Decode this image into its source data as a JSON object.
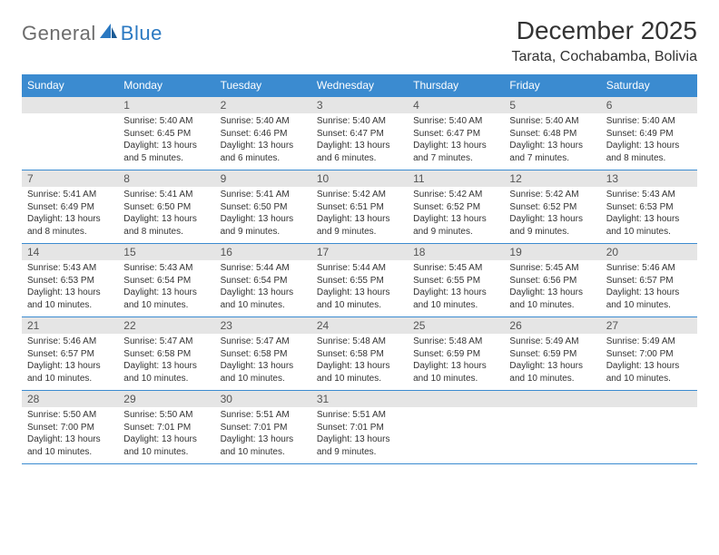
{
  "brand": {
    "part1": "General",
    "part2": "Blue"
  },
  "title": "December 2025",
  "location": "Tarata, Cochabamba, Bolivia",
  "colors": {
    "header_bg": "#3b8bd0",
    "header_text": "#ffffff",
    "daynum_bg": "#e5e5e5",
    "border": "#3b8bd0",
    "body_text": "#333333",
    "logo_gray": "#6c6c6c",
    "logo_blue": "#2b79c2"
  },
  "weekdays": [
    "Sunday",
    "Monday",
    "Tuesday",
    "Wednesday",
    "Thursday",
    "Friday",
    "Saturday"
  ],
  "weeks": [
    [
      {
        "empty": true
      },
      {
        "n": "1",
        "sr": "Sunrise: 5:40 AM",
        "ss": "Sunset: 6:45 PM",
        "d1": "Daylight: 13 hours",
        "d2": "and 5 minutes."
      },
      {
        "n": "2",
        "sr": "Sunrise: 5:40 AM",
        "ss": "Sunset: 6:46 PM",
        "d1": "Daylight: 13 hours",
        "d2": "and 6 minutes."
      },
      {
        "n": "3",
        "sr": "Sunrise: 5:40 AM",
        "ss": "Sunset: 6:47 PM",
        "d1": "Daylight: 13 hours",
        "d2": "and 6 minutes."
      },
      {
        "n": "4",
        "sr": "Sunrise: 5:40 AM",
        "ss": "Sunset: 6:47 PM",
        "d1": "Daylight: 13 hours",
        "d2": "and 7 minutes."
      },
      {
        "n": "5",
        "sr": "Sunrise: 5:40 AM",
        "ss": "Sunset: 6:48 PM",
        "d1": "Daylight: 13 hours",
        "d2": "and 7 minutes."
      },
      {
        "n": "6",
        "sr": "Sunrise: 5:40 AM",
        "ss": "Sunset: 6:49 PM",
        "d1": "Daylight: 13 hours",
        "d2": "and 8 minutes."
      }
    ],
    [
      {
        "n": "7",
        "sr": "Sunrise: 5:41 AM",
        "ss": "Sunset: 6:49 PM",
        "d1": "Daylight: 13 hours",
        "d2": "and 8 minutes."
      },
      {
        "n": "8",
        "sr": "Sunrise: 5:41 AM",
        "ss": "Sunset: 6:50 PM",
        "d1": "Daylight: 13 hours",
        "d2": "and 8 minutes."
      },
      {
        "n": "9",
        "sr": "Sunrise: 5:41 AM",
        "ss": "Sunset: 6:50 PM",
        "d1": "Daylight: 13 hours",
        "d2": "and 9 minutes."
      },
      {
        "n": "10",
        "sr": "Sunrise: 5:42 AM",
        "ss": "Sunset: 6:51 PM",
        "d1": "Daylight: 13 hours",
        "d2": "and 9 minutes."
      },
      {
        "n": "11",
        "sr": "Sunrise: 5:42 AM",
        "ss": "Sunset: 6:52 PM",
        "d1": "Daylight: 13 hours",
        "d2": "and 9 minutes."
      },
      {
        "n": "12",
        "sr": "Sunrise: 5:42 AM",
        "ss": "Sunset: 6:52 PM",
        "d1": "Daylight: 13 hours",
        "d2": "and 9 minutes."
      },
      {
        "n": "13",
        "sr": "Sunrise: 5:43 AM",
        "ss": "Sunset: 6:53 PM",
        "d1": "Daylight: 13 hours",
        "d2": "and 10 minutes."
      }
    ],
    [
      {
        "n": "14",
        "sr": "Sunrise: 5:43 AM",
        "ss": "Sunset: 6:53 PM",
        "d1": "Daylight: 13 hours",
        "d2": "and 10 minutes."
      },
      {
        "n": "15",
        "sr": "Sunrise: 5:43 AM",
        "ss": "Sunset: 6:54 PM",
        "d1": "Daylight: 13 hours",
        "d2": "and 10 minutes."
      },
      {
        "n": "16",
        "sr": "Sunrise: 5:44 AM",
        "ss": "Sunset: 6:54 PM",
        "d1": "Daylight: 13 hours",
        "d2": "and 10 minutes."
      },
      {
        "n": "17",
        "sr": "Sunrise: 5:44 AM",
        "ss": "Sunset: 6:55 PM",
        "d1": "Daylight: 13 hours",
        "d2": "and 10 minutes."
      },
      {
        "n": "18",
        "sr": "Sunrise: 5:45 AM",
        "ss": "Sunset: 6:55 PM",
        "d1": "Daylight: 13 hours",
        "d2": "and 10 minutes."
      },
      {
        "n": "19",
        "sr": "Sunrise: 5:45 AM",
        "ss": "Sunset: 6:56 PM",
        "d1": "Daylight: 13 hours",
        "d2": "and 10 minutes."
      },
      {
        "n": "20",
        "sr": "Sunrise: 5:46 AM",
        "ss": "Sunset: 6:57 PM",
        "d1": "Daylight: 13 hours",
        "d2": "and 10 minutes."
      }
    ],
    [
      {
        "n": "21",
        "sr": "Sunrise: 5:46 AM",
        "ss": "Sunset: 6:57 PM",
        "d1": "Daylight: 13 hours",
        "d2": "and 10 minutes."
      },
      {
        "n": "22",
        "sr": "Sunrise: 5:47 AM",
        "ss": "Sunset: 6:58 PM",
        "d1": "Daylight: 13 hours",
        "d2": "and 10 minutes."
      },
      {
        "n": "23",
        "sr": "Sunrise: 5:47 AM",
        "ss": "Sunset: 6:58 PM",
        "d1": "Daylight: 13 hours",
        "d2": "and 10 minutes."
      },
      {
        "n": "24",
        "sr": "Sunrise: 5:48 AM",
        "ss": "Sunset: 6:58 PM",
        "d1": "Daylight: 13 hours",
        "d2": "and 10 minutes."
      },
      {
        "n": "25",
        "sr": "Sunrise: 5:48 AM",
        "ss": "Sunset: 6:59 PM",
        "d1": "Daylight: 13 hours",
        "d2": "and 10 minutes."
      },
      {
        "n": "26",
        "sr": "Sunrise: 5:49 AM",
        "ss": "Sunset: 6:59 PM",
        "d1": "Daylight: 13 hours",
        "d2": "and 10 minutes."
      },
      {
        "n": "27",
        "sr": "Sunrise: 5:49 AM",
        "ss": "Sunset: 7:00 PM",
        "d1": "Daylight: 13 hours",
        "d2": "and 10 minutes."
      }
    ],
    [
      {
        "n": "28",
        "sr": "Sunrise: 5:50 AM",
        "ss": "Sunset: 7:00 PM",
        "d1": "Daylight: 13 hours",
        "d2": "and 10 minutes."
      },
      {
        "n": "29",
        "sr": "Sunrise: 5:50 AM",
        "ss": "Sunset: 7:01 PM",
        "d1": "Daylight: 13 hours",
        "d2": "and 10 minutes."
      },
      {
        "n": "30",
        "sr": "Sunrise: 5:51 AM",
        "ss": "Sunset: 7:01 PM",
        "d1": "Daylight: 13 hours",
        "d2": "and 10 minutes."
      },
      {
        "n": "31",
        "sr": "Sunrise: 5:51 AM",
        "ss": "Sunset: 7:01 PM",
        "d1": "Daylight: 13 hours",
        "d2": "and 9 minutes."
      },
      {
        "empty": true
      },
      {
        "empty": true
      },
      {
        "empty": true
      }
    ]
  ]
}
